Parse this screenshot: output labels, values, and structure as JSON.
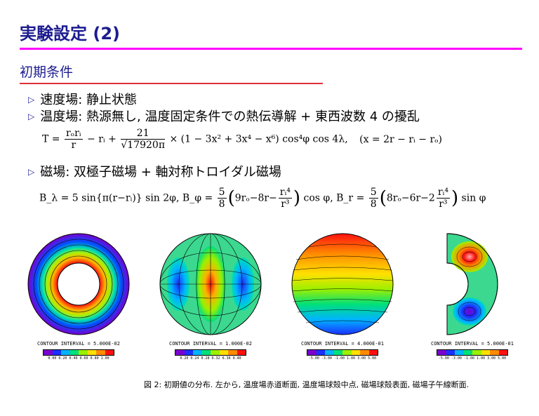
{
  "slide": {
    "title": "実験設定 (2)",
    "section": "初期条件"
  },
  "bullets": [
    {
      "text": "速度場:  静止状態"
    },
    {
      "text": "温度場:  熱源無し, 温度固定条件での熱伝導解 + 東西波数 4 の擾乱"
    },
    {
      "text": "磁場:  双極子磁場 + 軸対称トロイダル磁場"
    }
  ],
  "equations": {
    "temperature": {
      "lhs": "T =",
      "frac1_num": "rₒrᵢ",
      "frac1_den": "r",
      "mid": "− rᵢ +",
      "frac2_num": "21",
      "frac2_den": "√17920π",
      "tail": "× (1 − 3x² + 3x⁴ − x⁶) cos⁴φ cos 4λ,",
      "cond": "(x = 2r − rᵢ − rₒ)"
    },
    "magnetic": {
      "b_lambda": "B_λ = 5 sin{π(r−rᵢ)} sin 2φ,",
      "b_phi_lhs": "B_φ =",
      "b_phi_body": "9rₒ−8r−",
      "b_phi_tail": "cos φ,",
      "b_r_lhs": "B_r =",
      "b_r_body": "8rₒ−6r−2",
      "b_r_tail": "sin φ",
      "coef_num": "5",
      "coef_den": "8",
      "ri4": "rᵢ⁴",
      "r3": "r³"
    }
  },
  "panels": [
    {
      "contour_interval": "CONTOUR  INTERVAL  =  5.000E-02",
      "colorbar_labels": "0.00  0.20  0.40  0.60  0.80  1.00"
    },
    {
      "contour_interval": "CONTOUR  INTERVAL  =  1.000E-02",
      "colorbar_labels": "0.20  0.24  0.28  0.32  0.36  0.40"
    },
    {
      "contour_interval": "CONTOUR  INTERVAL  =  4.000E-01",
      "colorbar_labels": "-5.00 -3.00 -1.00  1.00  3.00  5.00"
    },
    {
      "contour_interval": "CONTOUR  INTERVAL  =  5.000E-01",
      "colorbar_labels": "-5.00 -3.00 -1.00  1.00  3.00  5.00"
    }
  ],
  "colorbar_colors": [
    "#7a00d0",
    "#1a30ff",
    "#00b4ff",
    "#00e07a",
    "#9cf000",
    "#ffe000",
    "#ff8c00",
    "#ff1010"
  ],
  "caption": "図 2: 初期値の分布. 左から, 温度場赤道断面, 温度場球殻中点, 磁場球殻表面, 磁場子午線断面."
}
